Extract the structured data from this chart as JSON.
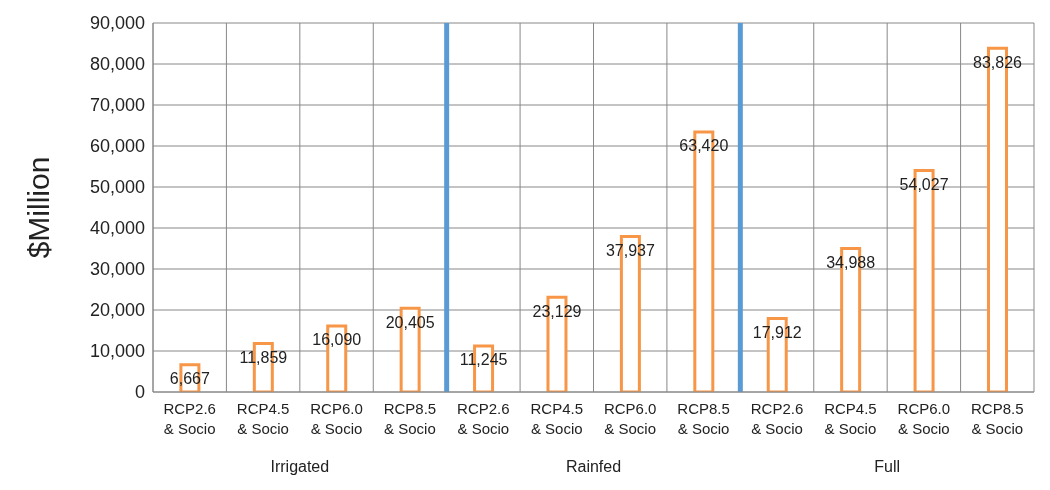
{
  "chart_data": {
    "type": "bar",
    "ylabel": "$Million",
    "categories": [
      "RCP2.6 & Socio",
      "RCP4.5 & Socio",
      "RCP6.0 & Socio",
      "RCP8.5 & Socio",
      "RCP2.6 & Socio",
      "RCP4.5 & Socio",
      "RCP6.0 & Socio",
      "RCP8.5 & Socio",
      "RCP2.6 & Socio",
      "RCP4.5 & Socio",
      "RCP6.0 & Socio",
      "RCP8.5 & Socio"
    ],
    "values": [
      6667,
      11859,
      16090,
      20405,
      11245,
      23129,
      37937,
      63420,
      17912,
      34988,
      54027,
      83826
    ],
    "color": "#f79646",
    "value_labels": [
      "6,667",
      "11,859",
      "16,090",
      "20,405",
      "11,245",
      "23,129",
      "37,937",
      "63,420",
      "17,912",
      "34,988",
      "54,027",
      "83,826"
    ],
    "ylim": [
      0,
      90000
    ],
    "yticks": [
      0,
      {
        "value": 10000,
        "label": "10,000"
      },
      {
        "value": 20000,
        "label": "20,000"
      },
      {
        "value": 30000,
        "label": "30,000"
      },
      {
        "value": 40000,
        "label": "40,000"
      },
      {
        "value": 50000,
        "label": "50,000"
      },
      {
        "value": 60000,
        "label": "60,000"
      },
      {
        "value": 70000,
        "label": "70,000"
      },
      {
        "value": 80000,
        "label": "80,000"
      },
      {
        "value": 90000,
        "label": "90,000"
      }
    ],
    "grid": true,
    "annotations": [
      "Irrigated",
      "Rainfed",
      "Full"
    ]
  }
}
